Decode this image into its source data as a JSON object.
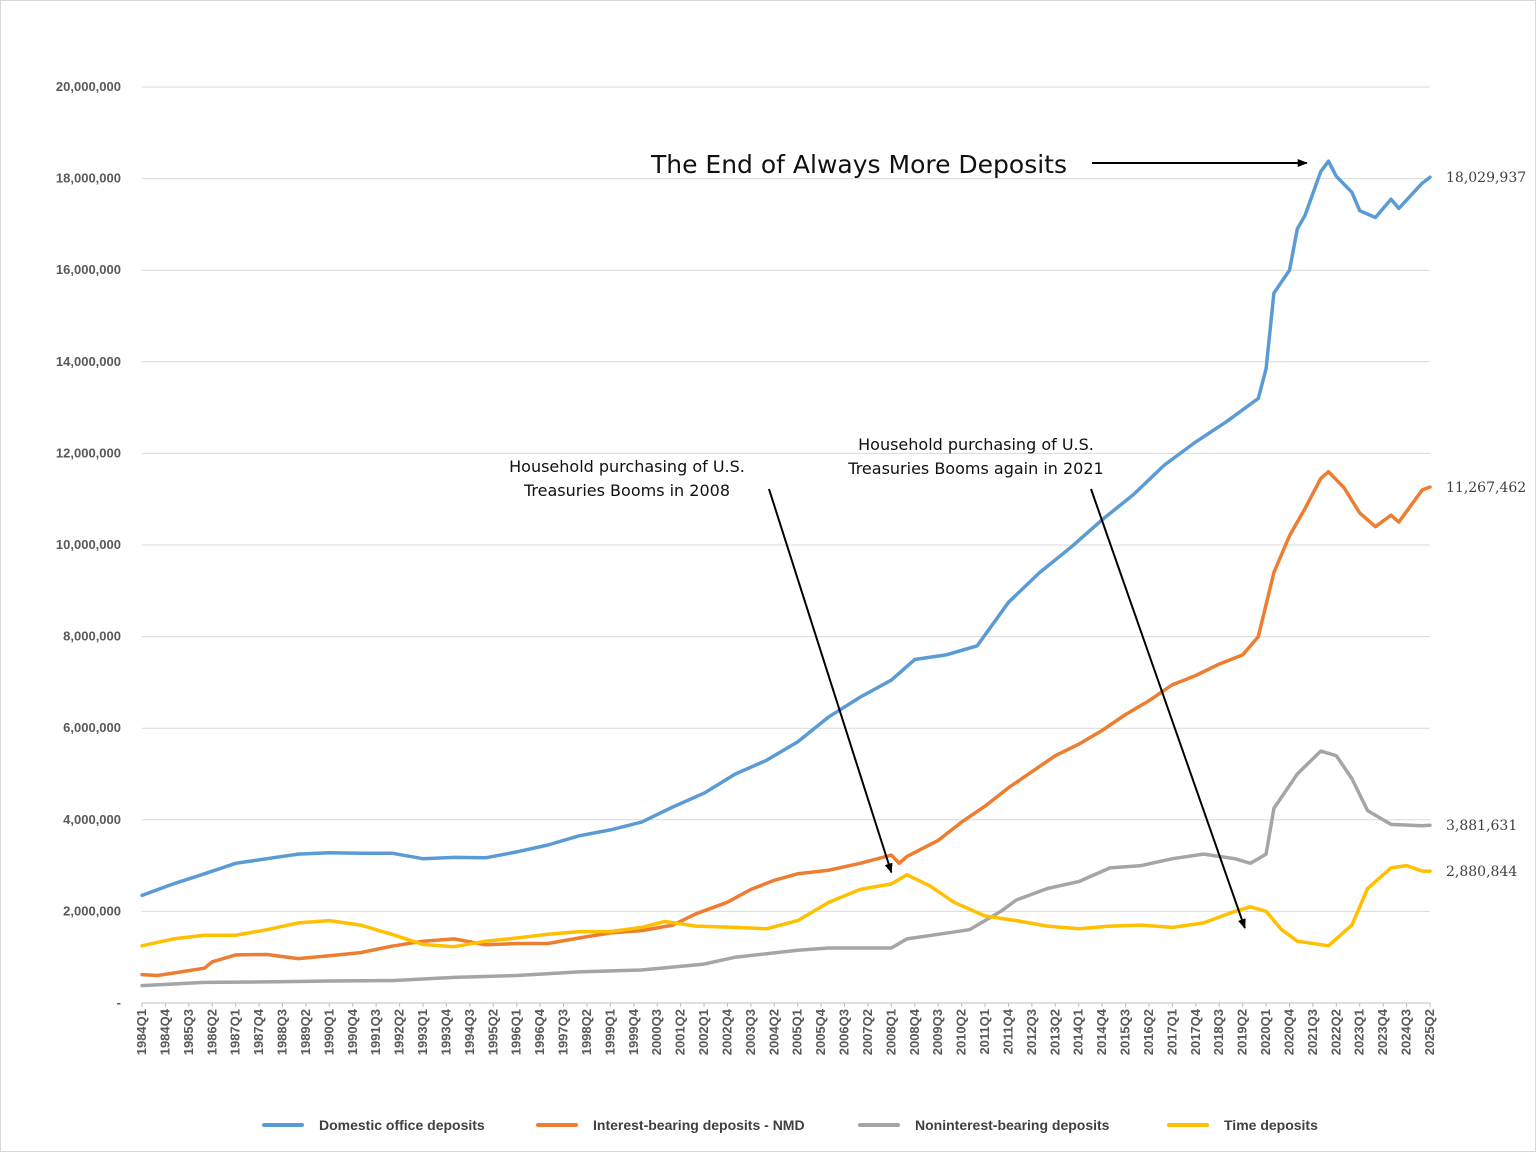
{
  "chart_data": {
    "type": "line",
    "title": "",
    "xlabel": "",
    "ylabel": "",
    "ylim": [
      0,
      20000000
    ],
    "grid": "horizontal",
    "legend_position": "bottom",
    "y_ticks": [
      "-",
      "2,000,000",
      "4,000,000",
      "6,000,000",
      "8,000,000",
      "10,000,000",
      "12,000,000",
      "14,000,000",
      "16,000,000",
      "18,000,000",
      "20,000,000"
    ],
    "x_range": [
      "1984Q1",
      "2025Q2"
    ],
    "x_tick_labels": [
      "1984Q1",
      "1984Q4",
      "1985Q3",
      "1986Q2",
      "1987Q1",
      "1987Q4",
      "1988Q3",
      "1989Q2",
      "1990Q1",
      "1990Q4",
      "1991Q3",
      "1992Q2",
      "1993Q1",
      "1993Q4",
      "1994Q3",
      "1995Q2",
      "1996Q1",
      "1996Q4",
      "1997Q3",
      "1998Q2",
      "1999Q1",
      "1999Q4",
      "2000Q3",
      "2001Q2",
      "2002Q1",
      "2002Q4",
      "2003Q3",
      "2004Q2",
      "2005Q1",
      "2005Q4",
      "2006Q3",
      "2007Q2",
      "2008Q1",
      "2008Q4",
      "2009Q3",
      "2010Q2",
      "2011Q1",
      "2011Q4",
      "2012Q3",
      "2013Q2",
      "2014Q1",
      "2014Q4",
      "2015Q3",
      "2016Q2",
      "2017Q1",
      "2017Q4",
      "2018Q3",
      "2019Q2",
      "2020Q1",
      "2020Q4",
      "2021Q3",
      "2022Q2",
      "2023Q1",
      "2023Q4",
      "2024Q3",
      "2025Q2"
    ],
    "series": [
      {
        "name": "Domestic office deposits",
        "color": "#5B9BD5",
        "end_label": "18,029,937",
        "points": [
          [
            "1984Q1",
            2350000
          ],
          [
            "1985Q1",
            2600000
          ],
          [
            "1986Q1",
            2820000
          ],
          [
            "1987Q1",
            3050000
          ],
          [
            "1988Q1",
            3150000
          ],
          [
            "1989Q1",
            3250000
          ],
          [
            "1990Q1",
            3280000
          ],
          [
            "1991Q1",
            3270000
          ],
          [
            "1992Q1",
            3270000
          ],
          [
            "1993Q1",
            3150000
          ],
          [
            "1994Q1",
            3180000
          ],
          [
            "1995Q1",
            3170000
          ],
          [
            "1996Q1",
            3300000
          ],
          [
            "1997Q1",
            3450000
          ],
          [
            "1998Q1",
            3650000
          ],
          [
            "1999Q1",
            3780000
          ],
          [
            "2000Q1",
            3950000
          ],
          [
            "2001Q1",
            4280000
          ],
          [
            "2002Q1",
            4580000
          ],
          [
            "2003Q1",
            5000000
          ],
          [
            "2004Q1",
            5300000
          ],
          [
            "2005Q1",
            5700000
          ],
          [
            "2006Q1",
            6250000
          ],
          [
            "2007Q1",
            6680000
          ],
          [
            "2008Q1",
            7050000
          ],
          [
            "2008Q4",
            7500000
          ],
          [
            "2009Q4",
            7600000
          ],
          [
            "2010Q4",
            7800000
          ],
          [
            "2011Q4",
            8750000
          ],
          [
            "2012Q4",
            9400000
          ],
          [
            "2013Q4",
            9950000
          ],
          [
            "2014Q4",
            10550000
          ],
          [
            "2015Q4",
            11100000
          ],
          [
            "2016Q4",
            11750000
          ],
          [
            "2017Q4",
            12250000
          ],
          [
            "2018Q4",
            12700000
          ],
          [
            "2019Q4",
            13200000
          ],
          [
            "2020Q1",
            13850000
          ],
          [
            "2020Q2",
            15500000
          ],
          [
            "2020Q4",
            16000000
          ],
          [
            "2021Q1",
            16900000
          ],
          [
            "2021Q2",
            17200000
          ],
          [
            "2021Q4",
            18150000
          ],
          [
            "2022Q1",
            18380000
          ],
          [
            "2022Q2",
            18050000
          ],
          [
            "2022Q4",
            17700000
          ],
          [
            "2023Q1",
            17300000
          ],
          [
            "2023Q3",
            17150000
          ],
          [
            "2024Q1",
            17550000
          ],
          [
            "2024Q2",
            17350000
          ],
          [
            "2025Q1",
            17900000
          ],
          [
            "2025Q2",
            18029937
          ]
        ]
      },
      {
        "name": "Interest-bearing deposits - NMD",
        "color": "#ED7D31",
        "end_label": "11,267,462",
        "points": [
          [
            "1984Q1",
            620000
          ],
          [
            "1984Q3",
            600000
          ],
          [
            "1985Q2",
            680000
          ],
          [
            "1986Q1",
            760000
          ],
          [
            "1986Q2",
            900000
          ],
          [
            "1987Q1",
            1050000
          ],
          [
            "1988Q1",
            1060000
          ],
          [
            "1989Q1",
            970000
          ],
          [
            "1990Q1",
            1030000
          ],
          [
            "1991Q1",
            1100000
          ],
          [
            "1992Q1",
            1240000
          ],
          [
            "1993Q1",
            1350000
          ],
          [
            "1994Q1",
            1400000
          ],
          [
            "1995Q1",
            1270000
          ],
          [
            "1996Q1",
            1300000
          ],
          [
            "1997Q1",
            1300000
          ],
          [
            "1998Q1",
            1420000
          ],
          [
            "1999Q1",
            1530000
          ],
          [
            "2000Q1",
            1580000
          ],
          [
            "2001Q1",
            1700000
          ],
          [
            "2001Q4",
            1950000
          ],
          [
            "2002Q4",
            2200000
          ],
          [
            "2003Q3",
            2480000
          ],
          [
            "2004Q2",
            2680000
          ],
          [
            "2005Q1",
            2820000
          ],
          [
            "2006Q1",
            2900000
          ],
          [
            "2007Q1",
            3050000
          ],
          [
            "2008Q1",
            3230000
          ],
          [
            "2008Q2",
            3050000
          ],
          [
            "2008Q3",
            3200000
          ],
          [
            "2009Q3",
            3550000
          ],
          [
            "2010Q2",
            3950000
          ],
          [
            "2011Q1",
            4300000
          ],
          [
            "2011Q4",
            4700000
          ],
          [
            "2012Q3",
            5050000
          ],
          [
            "2013Q2",
            5400000
          ],
          [
            "2014Q1",
            5650000
          ],
          [
            "2014Q4",
            5950000
          ],
          [
            "2015Q3",
            6300000
          ],
          [
            "2016Q2",
            6600000
          ],
          [
            "2017Q1",
            6950000
          ],
          [
            "2017Q4",
            7150000
          ],
          [
            "2018Q3",
            7400000
          ],
          [
            "2019Q2",
            7600000
          ],
          [
            "2019Q4",
            8000000
          ],
          [
            "2020Q2",
            9400000
          ],
          [
            "2020Q4",
            10200000
          ],
          [
            "2021Q2",
            10800000
          ],
          [
            "2021Q4",
            11450000
          ],
          [
            "2022Q1",
            11600000
          ],
          [
            "2022Q3",
            11250000
          ],
          [
            "2023Q1",
            10700000
          ],
          [
            "2023Q3",
            10400000
          ],
          [
            "2024Q1",
            10650000
          ],
          [
            "2024Q2",
            10500000
          ],
          [
            "2025Q1",
            11200000
          ],
          [
            "2025Q2",
            11267462
          ]
        ]
      },
      {
        "name": "Noninterest-bearing deposits",
        "color": "#A5A5A5",
        "end_label": "3,881,631",
        "points": [
          [
            "1984Q1",
            380000
          ],
          [
            "1986Q1",
            450000
          ],
          [
            "1988Q1",
            460000
          ],
          [
            "1990Q1",
            480000
          ],
          [
            "1992Q1",
            490000
          ],
          [
            "1994Q1",
            560000
          ],
          [
            "1996Q1",
            600000
          ],
          [
            "1998Q1",
            680000
          ],
          [
            "2000Q1",
            720000
          ],
          [
            "2002Q1",
            850000
          ],
          [
            "2003Q1",
            1000000
          ],
          [
            "2005Q1",
            1150000
          ],
          [
            "2006Q1",
            1200000
          ],
          [
            "2008Q1",
            1200000
          ],
          [
            "2008Q3",
            1400000
          ],
          [
            "2009Q3",
            1500000
          ],
          [
            "2010Q3",
            1600000
          ],
          [
            "2011Q3",
            2000000
          ],
          [
            "2012Q1",
            2250000
          ],
          [
            "2013Q1",
            2500000
          ],
          [
            "2014Q1",
            2650000
          ],
          [
            "2015Q1",
            2950000
          ],
          [
            "2016Q1",
            3000000
          ],
          [
            "2017Q1",
            3150000
          ],
          [
            "2018Q1",
            3250000
          ],
          [
            "2019Q1",
            3150000
          ],
          [
            "2019Q3",
            3050000
          ],
          [
            "2020Q1",
            3250000
          ],
          [
            "2020Q2",
            4250000
          ],
          [
            "2021Q1",
            5000000
          ],
          [
            "2021Q4",
            5500000
          ],
          [
            "2022Q2",
            5400000
          ],
          [
            "2022Q4",
            4900000
          ],
          [
            "2023Q2",
            4200000
          ],
          [
            "2024Q1",
            3900000
          ],
          [
            "2025Q1",
            3870000
          ],
          [
            "2025Q2",
            3881631
          ]
        ]
      },
      {
        "name": "Time deposits",
        "color": "#FFC000",
        "end_label": "2,880,844",
        "points": [
          [
            "1984Q1",
            1250000
          ],
          [
            "1985Q1",
            1400000
          ],
          [
            "1986Q1",
            1480000
          ],
          [
            "1987Q1",
            1480000
          ],
          [
            "1988Q1",
            1600000
          ],
          [
            "1989Q1",
            1750000
          ],
          [
            "1990Q1",
            1800000
          ],
          [
            "1991Q1",
            1700000
          ],
          [
            "1992Q1",
            1500000
          ],
          [
            "1993Q1",
            1280000
          ],
          [
            "1994Q1",
            1230000
          ],
          [
            "1995Q1",
            1350000
          ],
          [
            "1996Q1",
            1420000
          ],
          [
            "1997Q1",
            1500000
          ],
          [
            "1998Q1",
            1560000
          ],
          [
            "1999Q1",
            1560000
          ],
          [
            "2000Q1",
            1650000
          ],
          [
            "2000Q4",
            1780000
          ],
          [
            "2001Q4",
            1680000
          ],
          [
            "2003Q1",
            1650000
          ],
          [
            "2004Q1",
            1620000
          ],
          [
            "2005Q1",
            1800000
          ],
          [
            "2006Q1",
            2200000
          ],
          [
            "2007Q1",
            2480000
          ],
          [
            "2008Q1",
            2600000
          ],
          [
            "2008Q3",
            2800000
          ],
          [
            "2009Q2",
            2550000
          ],
          [
            "2010Q1",
            2200000
          ],
          [
            "2011Q1",
            1900000
          ],
          [
            "2012Q1",
            1800000
          ],
          [
            "2013Q1",
            1680000
          ],
          [
            "2014Q1",
            1620000
          ],
          [
            "2015Q1",
            1680000
          ],
          [
            "2016Q1",
            1700000
          ],
          [
            "2017Q1",
            1650000
          ],
          [
            "2018Q1",
            1750000
          ],
          [
            "2019Q1",
            2000000
          ],
          [
            "2019Q3",
            2100000
          ],
          [
            "2020Q1",
            2000000
          ],
          [
            "2020Q3",
            1600000
          ],
          [
            "2021Q1",
            1350000
          ],
          [
            "2022Q1",
            1250000
          ],
          [
            "2022Q4",
            1700000
          ],
          [
            "2023Q2",
            2500000
          ],
          [
            "2024Q1",
            2950000
          ],
          [
            "2024Q3",
            3000000
          ],
          [
            "2025Q1",
            2880000
          ],
          [
            "2025Q2",
            2880844
          ]
        ]
      }
    ],
    "annotations": [
      {
        "name": "end-of-deposits",
        "text": "The End of Always More Deposits",
        "lines": [
          "The End of Always More Deposits"
        ],
        "target": [
          "2021Q4",
          18380000
        ]
      },
      {
        "name": "treasuries-2008",
        "text": "Household purchasing of U.S. Treasuries Booms in 2008",
        "lines": [
          "Household purchasing of U.S.",
          "Treasuries Booms in 2008"
        ],
        "target": [
          "2008Q1",
          2850000
        ]
      },
      {
        "name": "treasuries-2021",
        "text": "Household purchasing of U.S. Treasuries Booms again in 2021",
        "lines": [
          "Household purchasing of U.S.",
          "Treasuries Booms again in 2021"
        ],
        "target": [
          "2019Q1",
          2400000
        ]
      }
    ]
  }
}
